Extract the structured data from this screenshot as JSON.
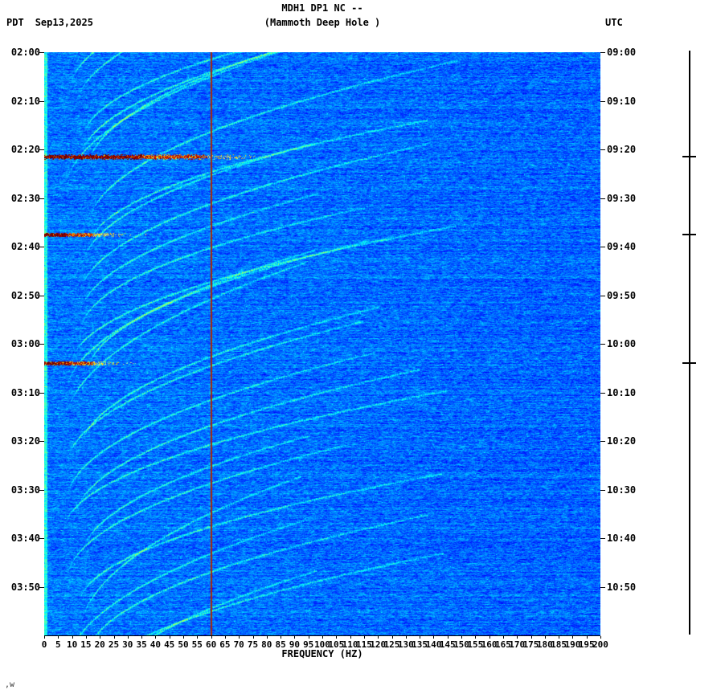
{
  "header": {
    "title": "MDH1 DP1 NC --",
    "subtitle": "(Mammoth Deep Hole )",
    "tz_left": "PDT",
    "date": "Sep13,2025",
    "tz_right": "UTC"
  },
  "footer": {
    "note": ",w"
  },
  "chart_data": {
    "type": "heatmap",
    "kind": "seismic spectrogram",
    "title": "MDH1 DP1 NC --",
    "subtitle": "(Mammoth Deep Hole )",
    "station": "MDH1 DP1 NC",
    "station_name": "Mammoth Deep Hole",
    "date": "Sep13,2025",
    "xlabel": "FREQUENCY (HZ)",
    "xlim": [
      0,
      200
    ],
    "x_tick_step_hz": 5,
    "x_ticks": [
      0,
      5,
      10,
      15,
      20,
      25,
      30,
      35,
      40,
      45,
      50,
      55,
      60,
      65,
      70,
      75,
      80,
      85,
      90,
      95,
      100,
      105,
      110,
      115,
      120,
      125,
      130,
      135,
      140,
      145,
      150,
      155,
      160,
      165,
      170,
      175,
      180,
      185,
      190,
      195,
      200
    ],
    "time_axis": {
      "left_timezone": "PDT",
      "right_timezone": "UTC",
      "start_left": "02:00",
      "end_left": "04:00",
      "total_minutes": 120,
      "tick_interval_min": 10,
      "left_ticks": [
        "02:00",
        "02:10",
        "02:20",
        "02:30",
        "02:40",
        "02:50",
        "03:00",
        "03:10",
        "03:20",
        "03:30",
        "03:40",
        "03:50"
      ],
      "right_ticks": [
        "09:00",
        "09:10",
        "09:20",
        "09:30",
        "09:40",
        "09:50",
        "10:00",
        "10:10",
        "10:20",
        "10:30",
        "10:40",
        "10:50"
      ]
    },
    "colormap": "jet",
    "background_value_range": [
      0.12,
      0.4
    ],
    "background_color_hint": "#0f7fe0",
    "powerline_hz": 60,
    "powerline_color": "#a82a08",
    "low_freq_bright_band_hz": 2,
    "events": [
      {
        "pdt": "02:21",
        "utc": "09:21",
        "minutes_from_start": 21.5,
        "max_freq_hz": 78,
        "strength": "strong",
        "core_fraction": 0.45
      },
      {
        "pdt": "02:37",
        "utc": "09:37",
        "minutes_from_start": 37.5,
        "max_freq_hz": 30,
        "strength": "moderate",
        "core_fraction": 0.28
      },
      {
        "pdt": "03:04",
        "utc": "10:04",
        "minutes_from_start": 64.0,
        "max_freq_hz": 28,
        "strength": "moderate",
        "core_fraction": 0.32
      }
    ],
    "event_palette": [
      "#6b0000",
      "#990000",
      "#cc1100",
      "#ee6600",
      "#ffcc00",
      "#bbee66"
    ],
    "texture": {
      "arc_count": 26,
      "arc_freq_start_hz": 10,
      "arc_freq_end_hz": 130,
      "arc_rise_minutes": 30,
      "description": "upward-gliding cyan harmonic arcs repeating every few minutes over blue noise background"
    }
  }
}
